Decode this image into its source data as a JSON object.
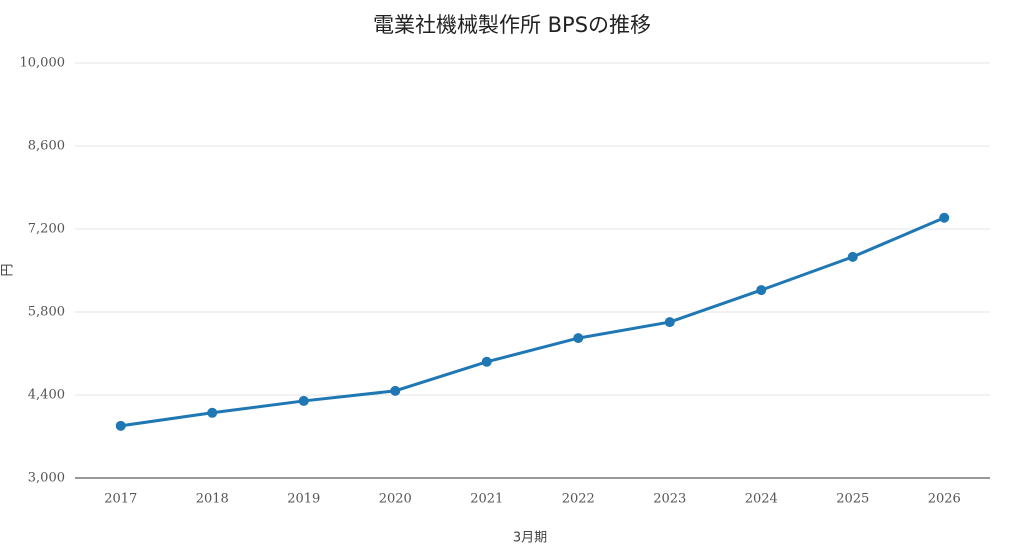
{
  "chart_data": {
    "type": "line",
    "title": "電業社機械製作所 BPSの推移",
    "x_label": "3月期",
    "y_label": "円",
    "categories": [
      "2017",
      "2018",
      "2019",
      "2020",
      "2021",
      "2022",
      "2023",
      "2024",
      "2025",
      "2026"
    ],
    "values": [
      3880,
      4100,
      4300,
      4470,
      4960,
      5360,
      5630,
      6170,
      6730,
      7390
    ],
    "color": "#1f77b4",
    "ylim": [
      3000,
      10000
    ],
    "yticks": [
      {
        "value": 3000,
        "label": "3,000"
      },
      {
        "value": 4400,
        "label": "4,400"
      },
      {
        "value": 5800,
        "label": "5,800"
      },
      {
        "value": 7200,
        "label": "7,200"
      },
      {
        "value": 8600,
        "label": "8,600"
      },
      {
        "value": 10000,
        "label": "10,000"
      }
    ],
    "grid": true
  }
}
